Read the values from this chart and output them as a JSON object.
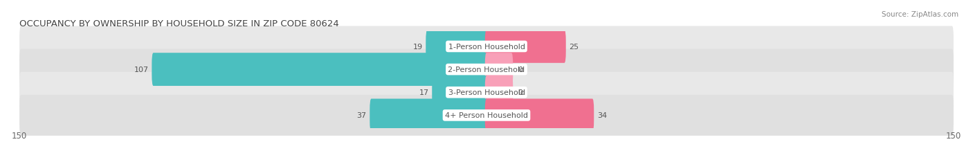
{
  "title": "OCCUPANCY BY OWNERSHIP BY HOUSEHOLD SIZE IN ZIP CODE 80624",
  "source": "Source: ZipAtlas.com",
  "categories": [
    "1-Person Household",
    "2-Person Household",
    "3-Person Household",
    "4+ Person Household"
  ],
  "owner_values": [
    19,
    107,
    17,
    37
  ],
  "renter_values": [
    25,
    0,
    0,
    34
  ],
  "x_min": -150,
  "x_max": 150,
  "owner_color": "#4bbfbf",
  "renter_color": "#f07090",
  "renter_color_light": "#f8a0b8",
  "row_bg_colors": [
    "#e8e8e8",
    "#e0e0e0",
    "#e8e8e8",
    "#e0e0e0"
  ],
  "title_fontsize": 9.5,
  "source_fontsize": 7.5,
  "tick_fontsize": 8.5,
  "bar_label_fontsize": 8,
  "category_fontsize": 8,
  "legend_fontsize": 8.5
}
